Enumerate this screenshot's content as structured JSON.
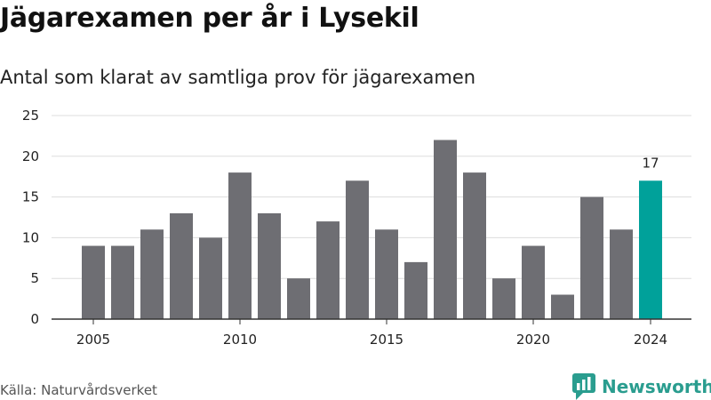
{
  "title": "Jägarexamen per år i Lysekil",
  "subtitle": "Antal som klarat av samtliga prov för jägarexamen",
  "source": "Källa: Naturvårdsverket",
  "brand": {
    "name": "Newsworthy",
    "icon": "newsworthy-logo-icon"
  },
  "colors": {
    "bar": "#6e6e73",
    "highlight": "#00a19a",
    "grid": "#dddddd",
    "axis": "#333333",
    "brand": "#2a9d8f"
  },
  "chart_data": {
    "type": "bar",
    "title": "Jägarexamen per år i Lysekil",
    "subtitle": "Antal som klarat av samtliga prov för jägarexamen",
    "xlabel": "",
    "ylabel": "",
    "categories": [
      2005,
      2006,
      2007,
      2008,
      2009,
      2010,
      2011,
      2012,
      2013,
      2014,
      2015,
      2016,
      2017,
      2018,
      2019,
      2020,
      2021,
      2022,
      2023,
      2024
    ],
    "values": [
      9,
      9,
      11,
      13,
      10,
      18,
      13,
      5,
      12,
      17,
      11,
      7,
      22,
      18,
      5,
      9,
      3,
      15,
      11,
      17
    ],
    "highlight_category": 2024,
    "data_labels": [
      {
        "category": 2024,
        "value": 17,
        "text": "17"
      }
    ],
    "ylim": [
      0,
      25
    ],
    "yticks": [
      0,
      5,
      10,
      15,
      20,
      25
    ],
    "xticks": [
      2005,
      2010,
      2015,
      2020,
      2024
    ],
    "grid": true,
    "legend": "none"
  }
}
